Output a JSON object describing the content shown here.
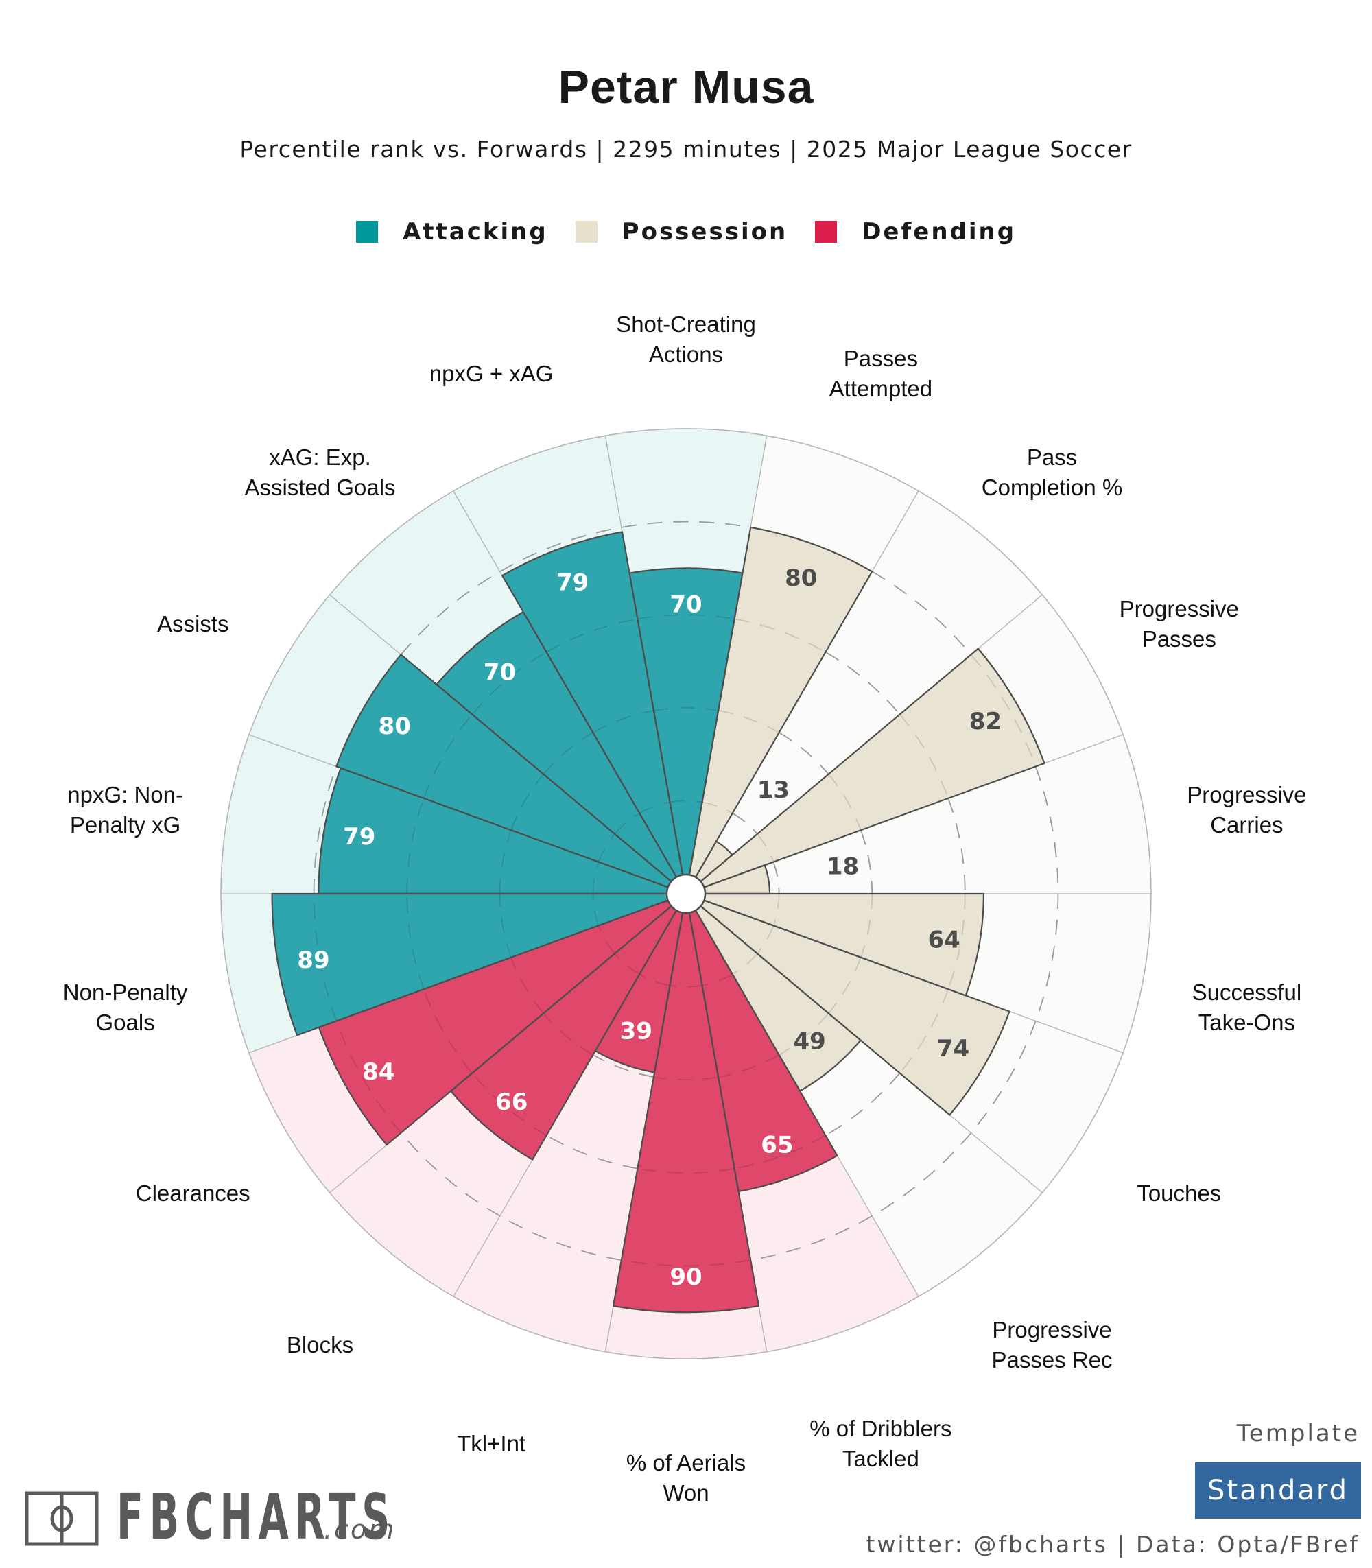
{
  "header": {
    "title": "Petar Musa",
    "subtitle": "Percentile rank vs. Forwards | 2295 minutes | 2025 Major League Soccer"
  },
  "legend": [
    {
      "label": "Attacking",
      "color": "#00979b"
    },
    {
      "label": "Possession",
      "color": "#e6dfca"
    },
    {
      "label": "Defending",
      "color": "#dc1f4a"
    }
  ],
  "footer": {
    "template_caption": "Template",
    "template_name": "Standard",
    "template_color": "#33689f",
    "credits": "twitter: @fbcharts | Data: Opta/FBref",
    "logo_text": "FBCHARTS",
    "logo_tld": ".com",
    "logo_icon": "pitch-icon"
  },
  "colors": {
    "Attacking": {
      "bar": "#2fa6ad",
      "bg": "#e9f6f6",
      "text": "#ffffff"
    },
    "Possession": {
      "bar": "#e8e3d3",
      "bg": "#fbfbf9",
      "text": "#4d4d4d"
    },
    "Defending": {
      "bar": "#e0486b",
      "bg": "#fcecf0",
      "text": "#ffffff"
    }
  },
  "chart_data": {
    "type": "polar-bar",
    "title": "Petar Musa",
    "subtitle": "Percentile rank vs. Forwards | 2295 minutes | 2025 Major League Soccer",
    "rlim": [
      0,
      100
    ],
    "gridlines": [
      20,
      40,
      60,
      80
    ],
    "legend_position": "top-center",
    "start": "top",
    "direction": "clockwise",
    "categories": [
      {
        "label": "Shot-Creating\nActions",
        "group": "Attacking",
        "value": 70
      },
      {
        "label": "Passes\nAttempted",
        "group": "Possession",
        "value": 80
      },
      {
        "label": "Pass\nCompletion %",
        "group": "Possession",
        "value": 13
      },
      {
        "label": "Progressive\nPasses",
        "group": "Possession",
        "value": 82
      },
      {
        "label": "Progressive\nCarries",
        "group": "Possession",
        "value": 18
      },
      {
        "label": "Successful\nTake-Ons",
        "group": "Possession",
        "value": 64
      },
      {
        "label": "Touches",
        "group": "Possession",
        "value": 74
      },
      {
        "label": "Progressive\nPasses Rec",
        "group": "Possession",
        "value": 49
      },
      {
        "label": "% of Dribblers\nTackled",
        "group": "Defending",
        "value": 65
      },
      {
        "label": "% of Aerials\nWon",
        "group": "Defending",
        "value": 90
      },
      {
        "label": "Tkl+Int",
        "group": "Defending",
        "value": 39
      },
      {
        "label": "Blocks",
        "group": "Defending",
        "value": 66
      },
      {
        "label": "Clearances",
        "group": "Defending",
        "value": 84
      },
      {
        "label": "Non-Penalty\nGoals",
        "group": "Attacking",
        "value": 89
      },
      {
        "label": "npxG: Non-\nPenalty xG",
        "group": "Attacking",
        "value": 79
      },
      {
        "label": "Assists",
        "group": "Attacking",
        "value": 80
      },
      {
        "label": "xAG: Exp.\nAssisted Goals",
        "group": "Attacking",
        "value": 70
      },
      {
        "label": "npxG + xAG",
        "group": "Attacking",
        "value": 79
      }
    ]
  }
}
